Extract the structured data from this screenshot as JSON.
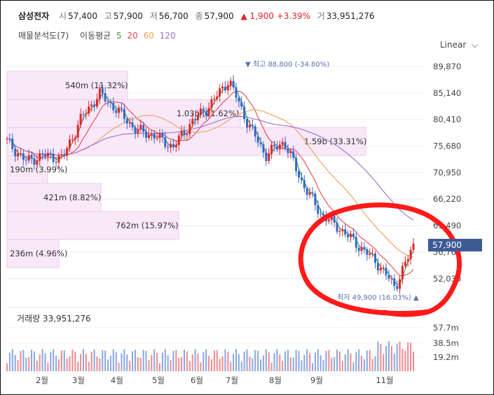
{
  "quote": {
    "name": "삼성전자",
    "open_label": "시",
    "open": "57,400",
    "high_label": "고",
    "high": "57,900",
    "low_label": "저",
    "low": "56,700",
    "close_label": "종",
    "close": "57,900",
    "change": "▲ 1,900 +3.39%",
    "volume_label": "거",
    "volume": "33,951,276"
  },
  "legend": {
    "profile": "매물분석도(7)",
    "ma_label": "이동평균",
    "ma": [
      {
        "period": "5",
        "color": "#3ba53b"
      },
      {
        "period": "20",
        "color": "#e8474b"
      },
      {
        "period": "60",
        "color": "#f0a05a"
      },
      {
        "period": "120",
        "color": "#9b6fd6"
      }
    ]
  },
  "scale_toggle": "Linear",
  "price_badge": "57,900",
  "volume_title": "거래량 33,951,276",
  "colors": {
    "up": "#e0242c",
    "down": "#3468c8",
    "profile": "#f7e6f7",
    "annotation": "#5b6fb0",
    "badge": "#3d5a95"
  },
  "chart_data": [
    {
      "type": "candlestick",
      "x_tick_labels": [
        "2월",
        "3월",
        "4월",
        "5월",
        "6월",
        "7월",
        "8월",
        "9월",
        "11월"
      ],
      "y_tick_labels": [
        "89,870",
        "85,140",
        "80,410",
        "75,680",
        "70,950",
        "66,220",
        "61,490",
        "56,760",
        "52,030"
      ],
      "ylim": [
        49000,
        91500
      ],
      "close_series_approx": [
        {
          "x": "1월 초",
          "y": 76500
        },
        {
          "x": "1월 말",
          "y": 73000
        },
        {
          "x": "2월",
          "y": 74000
        },
        {
          "x": "3월",
          "y": 73500
        },
        {
          "x": "3월 말",
          "y": 80500
        },
        {
          "x": "4월 초",
          "y": 85000
        },
        {
          "x": "4월",
          "y": 82000
        },
        {
          "x": "5월",
          "y": 78500
        },
        {
          "x": "5월 말",
          "y": 77500
        },
        {
          "x": "6월",
          "y": 75500
        },
        {
          "x": "6월 말",
          "y": 80000
        },
        {
          "x": "7월",
          "y": 83000
        },
        {
          "x": "7월 중",
          "y": 87500
        },
        {
          "x": "8월 초",
          "y": 80000
        },
        {
          "x": "8월",
          "y": 74000
        },
        {
          "x": "8월 말",
          "y": 76500
        },
        {
          "x": "9월",
          "y": 69000
        },
        {
          "x": "9월 말",
          "y": 63500
        },
        {
          "x": "10월",
          "y": 61000
        },
        {
          "x": "10월 말",
          "y": 58000
        },
        {
          "x": "11월",
          "y": 55000
        },
        {
          "x": "11월 중",
          "y": 50500
        },
        {
          "x": "11월 말",
          "y": 57900
        }
      ],
      "annotations": [
        {
          "text": "최고 88,800 (-34.80%)",
          "marker": "▼"
        },
        {
          "text": "최저 49,900 (16.03%)",
          "marker": "▲"
        }
      ],
      "volume_profile": [
        {
          "label": "540m (11.32%)",
          "price_from": 84000,
          "price_to": 89000
        },
        {
          "label": "1.03b (21.62%)",
          "price_from": 79000,
          "price_to": 84000
        },
        {
          "label": "1.59b (33.31%)",
          "price_from": 74000,
          "price_to": 79000
        },
        {
          "label": "190m (3.99%)",
          "price_from": 69000,
          "price_to": 74000
        },
        {
          "label": "421m (8.82%)",
          "price_from": 64000,
          "price_to": 69000
        },
        {
          "label": "762m (15.97%)",
          "price_from": 59000,
          "price_to": 64000
        },
        {
          "label": "236m (4.96%)",
          "price_from": 54000,
          "price_to": 59000
        }
      ]
    },
    {
      "type": "bar",
      "title": "거래량",
      "y_tick_labels": [
        "57.7m",
        "38.5m",
        "19.2m"
      ],
      "ylim": [
        0,
        60000000
      ]
    }
  ]
}
